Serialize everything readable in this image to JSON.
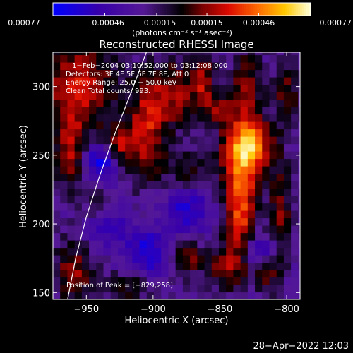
{
  "chart_data": {
    "type": "heatmap",
    "title": "Reconstructed RHESSI Image",
    "xlabel": "Heliocentric X (arcsec)",
    "ylabel": "Heliocentric Y (arcsec)",
    "xlim": [
      -975,
      -790
    ],
    "ylim": [
      145,
      325
    ],
    "x_ticks": [
      -950,
      -900,
      -850,
      -800
    ],
    "x_tick_labels": [
      "−950",
      "−900",
      "−850",
      "−800"
    ],
    "y_ticks": [
      150,
      200,
      250,
      300
    ],
    "y_tick_labels": [
      "150",
      "200",
      "250",
      "300"
    ],
    "colorbar": {
      "range": [
        -0.00077,
        0.00077
      ],
      "ticks": [
        -0.00077,
        -0.00046,
        -0.00015,
        0.00015,
        0.00046,
        0.00077
      ],
      "tick_labels": [
        "−0.00077",
        "−0.00046",
        "−0.00015",
        "0.00015",
        "0.00046",
        "0.00077"
      ],
      "units": "(photons cm⁻² s⁻¹ asec⁻²)"
    },
    "annotations": [
      "1−Feb−2004 03:10:52.000 to 03:12:08.000",
      "Detectors: 3F 4F 5F 6F 7F 8F, Att 0",
      "Energy Range: 25.0 − 50.0 keV",
      "Clean    Total counts: 993."
    ],
    "peak_label": "Position of Peak = [−829,258]",
    "peak": [
      -829,
      258
    ],
    "limb_curve": [
      [
        -964,
        145
      ],
      [
        -958,
        175
      ],
      [
        -950,
        205
      ],
      [
        -940,
        235
      ],
      [
        -930,
        262
      ],
      [
        -918,
        292
      ],
      [
        -905,
        325
      ]
    ],
    "emission_blobs": [
      {
        "x": -829,
        "y": 258,
        "sx": 12,
        "sy": 14,
        "v": 0.00077
      },
      {
        "x": -835,
        "y": 232,
        "sx": 10,
        "sy": 18,
        "v": 0.0005
      },
      {
        "x": -835,
        "y": 200,
        "sx": 8,
        "sy": 18,
        "v": 0.00045
      },
      {
        "x": -845,
        "y": 168,
        "sx": 10,
        "sy": 12,
        "v": 0.0004
      },
      {
        "x": -815,
        "y": 165,
        "sx": 7,
        "sy": 10,
        "v": 0.00035
      },
      {
        "x": -805,
        "y": 210,
        "sx": 6,
        "sy": 25,
        "v": 0.00036
      },
      {
        "x": -830,
        "y": 300,
        "sx": 8,
        "sy": 18,
        "v": 0.0004
      },
      {
        "x": -862,
        "y": 305,
        "sx": 6,
        "sy": 14,
        "v": 0.00035
      },
      {
        "x": -885,
        "y": 295,
        "sx": 15,
        "sy": 18,
        "v": 0.0004
      },
      {
        "x": -905,
        "y": 265,
        "sx": 10,
        "sy": 25,
        "v": 0.00045
      },
      {
        "x": -925,
        "y": 258,
        "sx": 8,
        "sy": 10,
        "v": 0.0004
      },
      {
        "x": -940,
        "y": 215,
        "sx": 7,
        "sy": 8,
        "v": 0.0003
      },
      {
        "x": -955,
        "y": 300,
        "sx": 20,
        "sy": 25,
        "v": 0.0005
      },
      {
        "x": -962,
        "y": 250,
        "sx": 8,
        "sy": 18,
        "v": 0.0004
      },
      {
        "x": -960,
        "y": 165,
        "sx": 10,
        "sy": 16,
        "v": 0.00042
      },
      {
        "x": -920,
        "y": 155,
        "sx": 12,
        "sy": 8,
        "v": 0.0003
      },
      {
        "x": -875,
        "y": 175,
        "sx": 8,
        "sy": 9,
        "v": 0.00038
      },
      {
        "x": -875,
        "y": 240,
        "sx": 10,
        "sy": 10,
        "v": 0.00028
      },
      {
        "x": -850,
        "y": 283,
        "sx": 9,
        "sy": 9,
        "v": 0.0003
      },
      {
        "x": -800,
        "y": 295,
        "sx": 7,
        "sy": 18,
        "v": 0.00032
      },
      {
        "x": -940,
        "y": 245,
        "sx": 9,
        "sy": 9,
        "v": -0.0005
      },
      {
        "x": -875,
        "y": 210,
        "sx": 12,
        "sy": 12,
        "v": -0.00035
      },
      {
        "x": -905,
        "y": 180,
        "sx": 12,
        "sy": 12,
        "v": -0.0004
      },
      {
        "x": -820,
        "y": 180,
        "sx": 8,
        "sy": 8,
        "v": -0.0004
      },
      {
        "x": -935,
        "y": 200,
        "sx": 10,
        "sy": 10,
        "v": -0.0003
      }
    ]
  },
  "timestamp": "28−Apr−2022 12:03"
}
